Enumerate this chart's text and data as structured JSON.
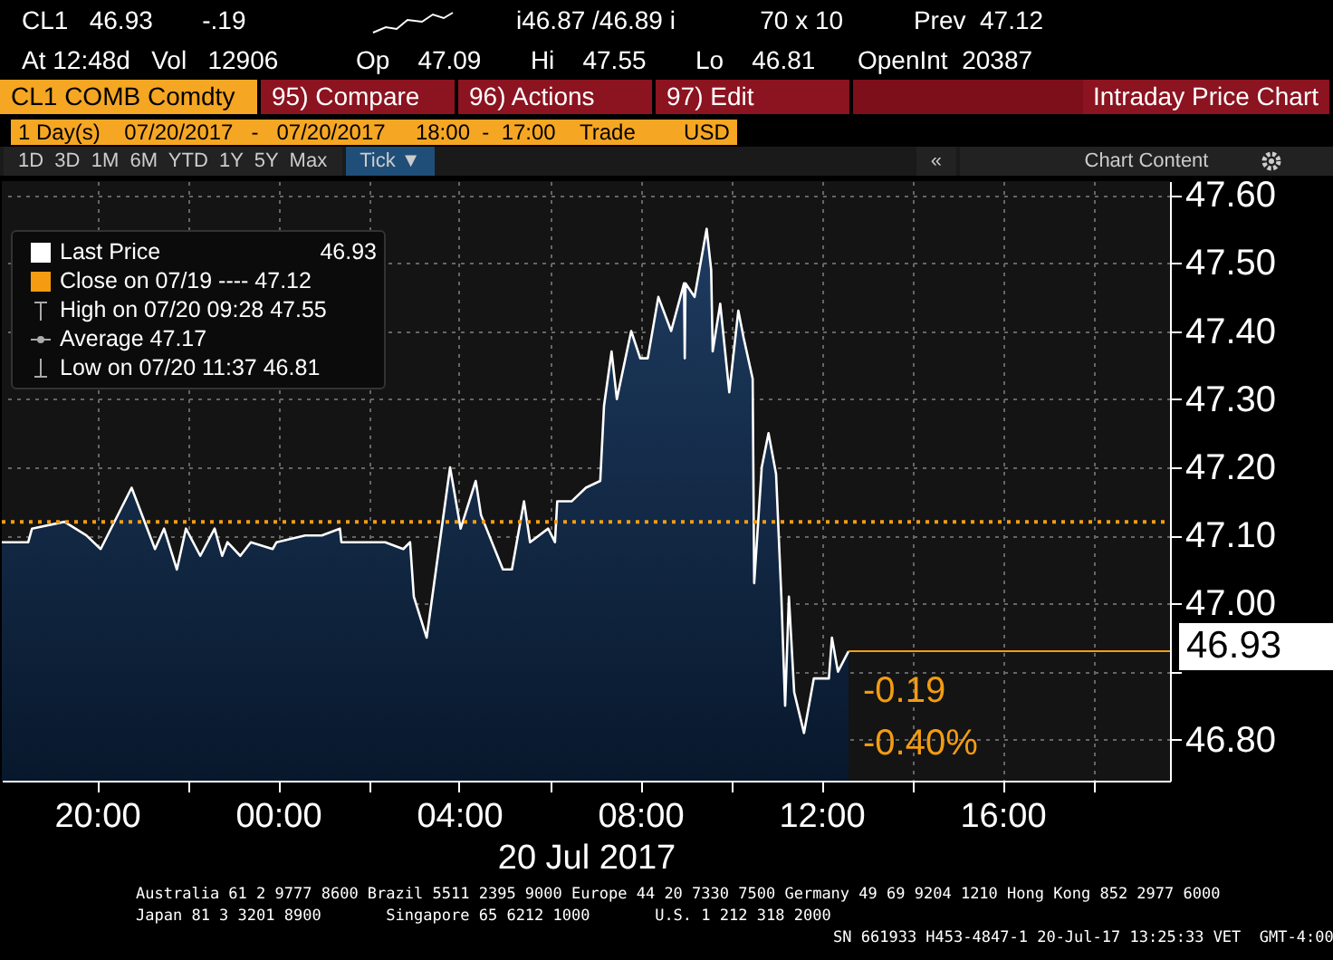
{
  "chart_data": {
    "type": "area",
    "xlabel": "20 Jul 2017",
    "legend": "top left",
    "grid": true,
    "xlim": [
      "2017-07-19T17:54",
      "2017-07-20T19:42"
    ],
    "ylim": [
      46.74,
      47.62
    ],
    "xticks": [
      {
        "value": "2017-07-19T20:00",
        "label": "20:00"
      },
      {
        "value": "2017-07-19T22:00",
        "label": null
      },
      {
        "value": "2017-07-20T00:00",
        "label": "00:00"
      },
      {
        "value": "2017-07-20T02:00",
        "label": null
      },
      {
        "value": "2017-07-20T04:00",
        "label": "04:00"
      },
      {
        "value": "2017-07-20T06:00",
        "label": null
      },
      {
        "value": "2017-07-20T08:00",
        "label": "08:00"
      },
      {
        "value": "2017-07-20T10:00",
        "label": null
      },
      {
        "value": "2017-07-20T12:00",
        "label": "12:00"
      },
      {
        "value": "2017-07-20T14:00",
        "label": null
      },
      {
        "value": "2017-07-20T16:00",
        "label": "16:00"
      },
      {
        "value": "2017-07-20T18:00",
        "label": null
      }
    ],
    "yticks": [
      {
        "value": 46.8,
        "label": "46.80"
      },
      {
        "value": 46.9,
        "label": null
      },
      {
        "value": 47,
        "label": "47.00"
      },
      {
        "value": 47.1,
        "label": "47.10"
      },
      {
        "value": 47.2,
        "label": "47.20"
      },
      {
        "value": 47.3,
        "label": "47.30"
      },
      {
        "value": 47.4,
        "label": "47.40"
      },
      {
        "value": 47.5,
        "label": "47.50"
      },
      {
        "value": 47.6,
        "label": "47.60"
      }
    ],
    "series": [
      {
        "name": "Last Price",
        "color": "#ffffff",
        "x": [
          "2017-07-19T17:54",
          "2017-07-19T18:29",
          "2017-07-19T18:34",
          "2017-07-19T19:17",
          "2017-07-19T19:46",
          "2017-07-19T20:05",
          "2017-07-19T20:46",
          "2017-07-19T21:17",
          "2017-07-19T21:29",
          "2017-07-19T21:46",
          "2017-07-19T21:58",
          "2017-07-19T22:17",
          "2017-07-19T22:36",
          "2017-07-19T22:46",
          "2017-07-19T22:53",
          "2017-07-19T23:10",
          "2017-07-19T23:24",
          "2017-07-19T23:53",
          "2017-07-19T23:58",
          "2017-07-20T00:36",
          "2017-07-20T00:58",
          "2017-07-20T01:22",
          "2017-07-20T01:24",
          "2017-07-20T02:22",
          "2017-07-20T02:46",
          "2017-07-20T02:55",
          "2017-07-20T03:00",
          "2017-07-20T03:17",
          "2017-07-20T03:48",
          "2017-07-20T04:02",
          "2017-07-20T04:22",
          "2017-07-20T04:29",
          "2017-07-20T04:58",
          "2017-07-20T05:10",
          "2017-07-20T05:26",
          "2017-07-20T05:34",
          "2017-07-20T05:58",
          "2017-07-20T06:07",
          "2017-07-20T06:10",
          "2017-07-20T06:29",
          "2017-07-20T06:48",
          "2017-07-20T07:07",
          "2017-07-20T07:12",
          "2017-07-20T07:22",
          "2017-07-20T07:29",
          "2017-07-20T07:48",
          "2017-07-20T08:00",
          "2017-07-20T08:10",
          "2017-07-20T08:24",
          "2017-07-20T08:41",
          "2017-07-20T08:58",
          "2017-07-20T08:59",
          "2017-07-20T09:00",
          "2017-07-20T09:12",
          "2017-07-20T09:28",
          "2017-07-20T09:34",
          "2017-07-20T09:36",
          "2017-07-20T09:46",
          "2017-07-20T09:58",
          "2017-07-20T10:10",
          "2017-07-20T10:17",
          "2017-07-20T10:29",
          "2017-07-20T10:31",
          "2017-07-20T10:41",
          "2017-07-20T10:50",
          "2017-07-20T11:00",
          "2017-07-20T11:07",
          "2017-07-20T11:12",
          "2017-07-20T11:17",
          "2017-07-20T11:24",
          "2017-07-20T11:37",
          "2017-07-20T11:50",
          "2017-07-20T12:10",
          "2017-07-20T12:14",
          "2017-07-20T12:22",
          "2017-07-20T12:36"
        ],
        "values": [
          47.09,
          47.09,
          47.11,
          47.12,
          47.1,
          47.08,
          47.17,
          47.08,
          47.11,
          47.05,
          47.11,
          47.07,
          47.11,
          47.07,
          47.09,
          47.07,
          47.09,
          47.08,
          47.09,
          47.1,
          47.1,
          47.11,
          47.09,
          47.09,
          47.08,
          47.09,
          47.01,
          46.95,
          47.2,
          47.11,
          47.18,
          47.13,
          47.05,
          47.05,
          47.15,
          47.09,
          47.11,
          47.09,
          47.15,
          47.15,
          47.17,
          47.18,
          47.29,
          47.37,
          47.3,
          47.4,
          47.36,
          47.36,
          47.45,
          47.4,
          47.47,
          47.36,
          47.47,
          47.45,
          47.55,
          47.49,
          47.37,
          47.44,
          47.31,
          47.43,
          47.39,
          47.33,
          47.03,
          47.2,
          47.25,
          47.19,
          47.01,
          46.85,
          47.01,
          46.87,
          46.81,
          46.89,
          46.89,
          46.95,
          46.9,
          46.93
        ]
      }
    ],
    "ref_lines": [
      {
        "axis": "y",
        "value": 47.12,
        "color": "#f39c12",
        "line_style": "dotted"
      },
      {
        "axis": "y",
        "value": 46.93,
        "label": "46.93",
        "color": "#f39c12",
        "line_style": "solid"
      }
    ],
    "annotations": [
      "Close on 07/19 ---- 47.12",
      "High on 07/20 09:28 47.55",
      "Average 47.17",
      "Low on 07/20 11:37 46.81",
      "-0.19",
      "-0.40%",
      "CL1   46.93       -.19",
      "i46.87 /46.89 i            70 x 10          Prev  47.12",
      "At 12:48d   Vol   12906           Op    47.09       Hi    47.55       Lo    46.81      OpenInt  20387",
      "CL1 COMB Comdty",
      "95) Compare",
      "96) Actions",
      "97) Edit",
      "Intraday Price Chart",
      "1 Day(s)    07/20/2017   -   07/20/2017     18:00  -  17:00    Trade        USD",
      "1D  3D  1M  6M  YTD  1Y  5Y  Max",
      "Tick ▼",
      "«",
      "Chart Content",
      "Australia 61 2 9777 8600 Brazil 5511 2395 9000 Europe 44 20 7330 7500 Germany 49 69 9204 1210 Hong Kong 852 2977 6000",
      "Japan 81 3 3201 8900       Singapore 65 6212 1000       U.S. 1 212 318 2000",
      "SN 661933 H453-4847-1 20-Jul-17 13:25:33 VET  GMT-4:00"
    ]
  }
}
